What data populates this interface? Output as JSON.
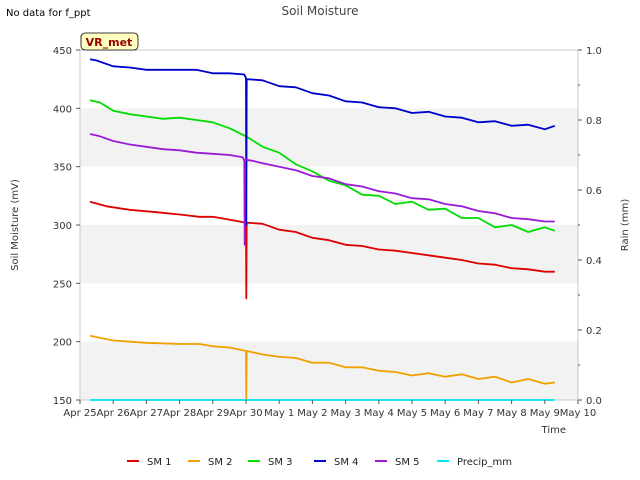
{
  "chart_data": {
    "type": "line",
    "title": "Soil Moisture",
    "note": "No data for f_ppt",
    "badge": "VR_met",
    "xlabel": "Time",
    "ylabel": "Soil Moisture (mV)",
    "y2label": "Rain (mm)",
    "xlim": [
      0,
      15
    ],
    "ylim": [
      150,
      450
    ],
    "y2lim": [
      0,
      1.0
    ],
    "x_tick_labels": [
      "Apr 25",
      "Apr 26",
      "Apr 27",
      "Apr 28",
      "Apr 29",
      "Apr 30",
      "May 1",
      "May 2",
      "May 3",
      "May 4",
      "May 5",
      "May 6",
      "May 7",
      "May 8",
      "May 9",
      "May 10"
    ],
    "y_ticks": [
      150,
      200,
      250,
      300,
      350,
      400,
      450
    ],
    "y2_ticks": [
      "0.0",
      "0.2",
      "0.4",
      "0.6",
      "0.8",
      "1.0"
    ],
    "y2_tick_values": [
      0,
      0.2,
      0.4,
      0.6,
      0.8,
      1.0
    ],
    "series": [
      {
        "name": "SM 1",
        "color": "#dd0000",
        "x": [
          0.3,
          0.8,
          1.5,
          2.3,
          3,
          3.6,
          4,
          4.6,
          5,
          5.01,
          5.02,
          5.5,
          6,
          6.5,
          7,
          7.5,
          8,
          8.5,
          9,
          9.5,
          10,
          10.5,
          11,
          11.5,
          12,
          12.5,
          13,
          13.5,
          14,
          14.3
        ],
        "y": [
          320,
          316,
          313,
          311,
          309,
          307,
          307,
          304,
          302,
          237,
          302,
          301,
          296,
          294,
          289,
          287,
          283,
          282,
          279,
          278,
          276,
          274,
          272,
          270,
          267,
          266,
          263,
          262,
          260,
          260
        ]
      },
      {
        "name": "SM 2",
        "color": "#f0a000",
        "x": [
          0.3,
          1,
          2,
          3,
          3.6,
          4,
          4.5,
          5,
          5.01,
          5.02,
          5.5,
          6,
          6.5,
          7,
          7.5,
          8,
          8.5,
          9,
          9.5,
          10,
          10.5,
          11,
          11.5,
          12,
          12.5,
          13,
          13.5,
          14,
          14.3
        ],
        "y": [
          205,
          201,
          199,
          198,
          198,
          196,
          195,
          192,
          150,
          192,
          189,
          187,
          186,
          182,
          182,
          178,
          178,
          175,
          174,
          171,
          173,
          170,
          172,
          168,
          170,
          165,
          168,
          164,
          165
        ]
      },
      {
        "name": "SM 3",
        "color": "#00dd00",
        "x": [
          0.3,
          0.6,
          1,
          1.5,
          2,
          2.5,
          3,
          3.5,
          4,
          4.5,
          5,
          5.5,
          6,
          6.5,
          7,
          7.5,
          8,
          8.5,
          9,
          9.5,
          10,
          10.5,
          11,
          11.5,
          12,
          12.5,
          13,
          13.5,
          14,
          14.3
        ],
        "y": [
          407,
          405,
          398,
          395,
          393,
          391,
          392,
          390,
          388,
          383,
          376,
          367,
          362,
          352,
          346,
          338,
          334,
          326,
          325,
          318,
          320,
          313,
          314,
          306,
          306,
          298,
          300,
          294,
          298,
          295
        ]
      },
      {
        "name": "SM 4",
        "color": "#0000cc",
        "x": [
          0.3,
          0.5,
          1,
          1.5,
          2,
          2.5,
          3,
          3.5,
          4,
          4.5,
          4.95,
          5,
          5.01,
          5.02,
          5.5,
          6,
          6.5,
          7,
          7.5,
          8,
          8.5,
          9,
          9.5,
          10,
          10.5,
          11,
          11.5,
          12,
          12.5,
          13,
          13.5,
          14,
          14.3
        ],
        "y": [
          442,
          441,
          436,
          435,
          433,
          433,
          433,
          433,
          430,
          430,
          429,
          426,
          300,
          425,
          424,
          419,
          418,
          413,
          411,
          406,
          405,
          401,
          400,
          396,
          397,
          393,
          392,
          388,
          389,
          385,
          386,
          382,
          385
        ]
      },
      {
        "name": "SM 5",
        "color": "#9a1bd6",
        "x": [
          0.3,
          0.6,
          1,
          1.5,
          2,
          2.5,
          3,
          3.5,
          4,
          4.5,
          4.9,
          4.95,
          4.96,
          4.97,
          5.2,
          5.5,
          6,
          6.5,
          7,
          7.5,
          8,
          8.5,
          9,
          9.5,
          10,
          10.5,
          11,
          11.5,
          12,
          12.5,
          13,
          13.5,
          14,
          14.3
        ],
        "y": [
          378,
          376,
          372,
          369,
          367,
          365,
          364,
          362,
          361,
          360,
          358,
          355,
          283,
          356,
          355,
          353,
          350,
          347,
          342,
          340,
          335,
          333,
          329,
          327,
          323,
          322,
          318,
          316,
          312,
          310,
          306,
          305,
          303,
          303
        ]
      },
      {
        "name": "Precip_mm",
        "color": "#00e5ee",
        "x": [
          0.3,
          14.3
        ],
        "y": [
          150,
          150
        ]
      }
    ]
  }
}
